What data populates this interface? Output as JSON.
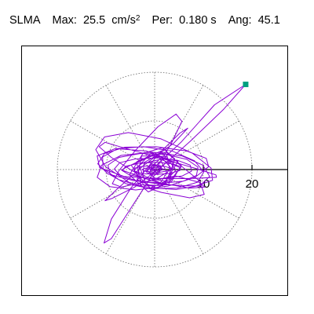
{
  "header": {
    "station": "SLMA",
    "max_label": "Max:",
    "max_value": "25.5",
    "max_unit_base": "cm/s",
    "max_unit_sup": "2",
    "per_label": "Per:",
    "per_value": "0.180 s",
    "ang_label": "Ang:",
    "ang_value": "45.1"
  },
  "chart_data": {
    "type": "polar-trajectory",
    "units": "cm/s^2",
    "rings": [
      10,
      20
    ],
    "tick_labels": [
      "10",
      "20"
    ],
    "grid": "dotted radial spokes every 30 deg",
    "end_marker": {
      "x": 18.7,
      "y": 17.5
    },
    "trajectory": [
      [
        0,
        0
      ],
      [
        -1,
        0.5
      ],
      [
        0.5,
        -0.8
      ],
      [
        1.4,
        0.4
      ],
      [
        -0.6,
        1.2
      ],
      [
        -1.8,
        -0.4
      ],
      [
        0.3,
        -1.9
      ],
      [
        2.5,
        -0.6
      ],
      [
        1.2,
        2.1
      ],
      [
        -2.2,
        1.3
      ],
      [
        -2.4,
        -1.7
      ],
      [
        1.1,
        -2.8
      ],
      [
        3.3,
        0.4
      ],
      [
        0.8,
        3.1
      ],
      [
        -3.2,
        0.9
      ],
      [
        -1.9,
        -2.6
      ],
      [
        2.2,
        -2.9
      ],
      [
        3.9,
        1.3
      ],
      [
        -0.6,
        3.5
      ],
      [
        -4.3,
        -0.3
      ],
      [
        -0.9,
        -3.8
      ],
      [
        3.4,
        -1.9
      ],
      [
        2.6,
        2.7
      ],
      [
        -2.7,
        2.8
      ],
      [
        -3.6,
        -2.1
      ],
      [
        0.6,
        -3.9
      ],
      [
        4.4,
        -0.1
      ],
      [
        1.3,
        3.8
      ],
      [
        -3.7,
        1.6
      ],
      [
        -2.8,
        -3.1
      ],
      [
        1.7,
        -3.3
      ],
      [
        4.8,
        1.7
      ],
      [
        -0.3,
        2.9
      ],
      [
        -4.8,
        0.9
      ],
      [
        -2.1,
        -3.4
      ],
      [
        2.9,
        -3.1
      ],
      [
        4.1,
        2.2
      ],
      [
        1.6,
        4.5
      ],
      [
        -2.4,
        3.3
      ],
      [
        -5.2,
        -1.1
      ],
      [
        -1.3,
        -4.6
      ],
      [
        3.2,
        -2.4
      ],
      [
        5.5,
        0.8
      ],
      [
        2.4,
        3.6
      ],
      [
        -1.5,
        2.6
      ],
      [
        -6.1,
        0.3
      ],
      [
        -6.8,
        -0.1
      ],
      [
        -2.5,
        -1.6
      ],
      [
        3.4,
        -2.6
      ],
      [
        5.2,
        0.4
      ],
      [
        1.1,
        2.2
      ],
      [
        -1.5,
        -0.2
      ],
      [
        -0.3,
        -1.4
      ],
      [
        1.3,
        -0.1
      ],
      [
        0.1,
        1.1
      ],
      [
        -1.1,
        -0.7
      ],
      [
        0.8,
        -0.9
      ],
      [
        1.2,
        0.8
      ],
      [
        -0.5,
        0.9
      ],
      [
        -0.9,
        -0.3
      ],
      [
        5.4,
        5.6
      ],
      [
        12.3,
        13.3
      ],
      [
        18.7,
        17.5
      ],
      [
        14.2,
        12.4
      ],
      [
        7.3,
        5.8
      ],
      [
        1.7,
        0.8
      ],
      [
        -4.1,
        -3.6
      ],
      [
        -8.7,
        -5.9
      ],
      [
        -10.2,
        -6.4
      ],
      [
        -7.8,
        -4.1
      ],
      [
        -2.3,
        0.8
      ],
      [
        3.9,
        5.4
      ],
      [
        6.8,
        8.5
      ],
      [
        5.2,
        7.5
      ],
      [
        0.9,
        3.3
      ],
      [
        -4.8,
        -3.7
      ],
      [
        -8.9,
        -10.2
      ],
      [
        -10.4,
        -15.1
      ],
      [
        -8.9,
        -14.2
      ],
      [
        -5.2,
        -8.4
      ],
      [
        -0.6,
        -1.3
      ],
      [
        3.4,
        5.3
      ],
      [
        5.6,
        9.9
      ],
      [
        4.4,
        11.4
      ],
      [
        0.7,
        8.8
      ],
      [
        -3.8,
        4.1
      ],
      [
        -7.3,
        -0.2
      ],
      [
        -8.7,
        -2.9
      ],
      [
        -6.8,
        -3.6
      ],
      [
        -1.9,
        -2.5
      ],
      [
        4.3,
        -1.3
      ],
      [
        9.1,
        -2.6
      ],
      [
        10.3,
        -3.6
      ],
      [
        7.2,
        -3.8
      ],
      [
        1.4,
        -2.8
      ],
      [
        -4.5,
        -0.3
      ],
      [
        -8.9,
        2.5
      ],
      [
        -11.4,
        4.7
      ],
      [
        -10.2,
        5.6
      ],
      [
        -5.8,
        4.3
      ],
      [
        1.3,
        2.3
      ],
      [
        8.2,
        0.3
      ],
      [
        12.6,
        -1.1
      ],
      [
        12.7,
        -1.6
      ],
      [
        8.3,
        -1.8
      ],
      [
        1.1,
        -1.9
      ],
      [
        -6.3,
        -1.4
      ],
      [
        -11.3,
        0.4
      ],
      [
        -11.8,
        2.8
      ],
      [
        -8.1,
        4.3
      ],
      [
        -1.7,
        3.8
      ],
      [
        4.9,
        1.2
      ],
      [
        9.3,
        -2.4
      ],
      [
        10.2,
        -5.1
      ],
      [
        7.2,
        -5.8
      ],
      [
        1.4,
        -4.7
      ],
      [
        -5.3,
        -2.6
      ],
      [
        -10.1,
        0.6
      ],
      [
        -12.1,
        4.1
      ],
      [
        -10.3,
        6.7
      ],
      [
        -5.4,
        7.6
      ],
      [
        1.3,
        6.3
      ],
      [
        7.7,
        3.4
      ],
      [
        11.6,
        0.3
      ],
      [
        11.9,
        -2.2
      ],
      [
        8.4,
        -3.4
      ],
      [
        2.1,
        -3.1
      ],
      [
        -4.6,
        -2.2
      ],
      [
        -9.6,
        -0.9
      ],
      [
        -11.7,
        1.2
      ],
      [
        -10.3,
        3.3
      ],
      [
        -6.1,
        4.6
      ],
      [
        0.3,
        4.7
      ],
      [
        6.6,
        3.8
      ],
      [
        10.6,
        2.3
      ],
      [
        11.1,
        0.6
      ],
      [
        8.3,
        -1.6
      ],
      [
        2.7,
        -3.4
      ],
      [
        -3.9,
        -4.2
      ],
      [
        -9.2,
        -3.5
      ],
      [
        -11.8,
        -1.6
      ],
      [
        -10.9,
        0.9
      ],
      [
        -6.9,
        2.9
      ],
      [
        -0.7,
        3.6
      ],
      [
        5.6,
        2.8
      ],
      [
        9.9,
        0.9
      ],
      [
        11.3,
        -1.4
      ],
      [
        9.3,
        -3.3
      ],
      [
        4.4,
        -4.1
      ],
      [
        -1.8,
        -3.7
      ],
      [
        -7.3,
        -2.1
      ],
      [
        -10.6,
        0.2
      ],
      [
        -10.7,
        2.6
      ],
      [
        -7.6,
        4.3
      ],
      [
        -2.3,
        4.7
      ],
      [
        3.6,
        3.8
      ],
      [
        8.2,
        1.8
      ],
      [
        10.1,
        -0.5
      ],
      [
        8.8,
        -2.6
      ],
      [
        4.7,
        -3.8
      ],
      [
        -0.8,
        -3.9
      ],
      [
        -5.9,
        -2.9
      ],
      [
        -9.1,
        -1.1
      ],
      [
        -9.6,
        0.9
      ],
      [
        -7.3,
        2.5
      ],
      [
        -2.9,
        3.3
      ],
      [
        2.3,
        3.1
      ],
      [
        6.6,
        2.1
      ],
      [
        8.9,
        0.5
      ],
      [
        8.6,
        -1.2
      ],
      [
        5.8,
        -2.4
      ],
      [
        1.4,
        -2.8
      ],
      [
        -3.3,
        -2.4
      ],
      [
        -6.9,
        -1.3
      ],
      [
        -8.3,
        0.1
      ],
      [
        -7.2,
        1.4
      ],
      [
        -3.9,
        2.2
      ],
      [
        0.6,
        2.4
      ],
      [
        4.7,
        1.9
      ],
      [
        7.3,
        0.9
      ],
      [
        7.6,
        -0.3
      ],
      [
        5.7,
        -1.3
      ],
      [
        2.1,
        -1.8
      ],
      [
        -1.9,
        -1.7
      ],
      [
        -5.2,
        -1.1
      ],
      [
        -6.7,
        -0.2
      ],
      [
        -5.9,
        0.7
      ],
      [
        -3.2,
        1.3
      ],
      [
        0.4,
        1.5
      ],
      [
        3.6,
        1.2
      ],
      [
        5.4,
        0.6
      ],
      [
        5.2,
        -0.2
      ],
      [
        3.1,
        -0.8
      ],
      [
        0.2,
        -1.0
      ],
      [
        -2.6,
        -0.8
      ],
      [
        -4.2,
        -0.3
      ],
      [
        -4.1,
        0.3
      ],
      [
        -2.4,
        0.7
      ],
      [
        0.1,
        0.8
      ],
      [
        2.3,
        0.6
      ],
      [
        3.4,
        0.2
      ],
      [
        3.0,
        -0.2
      ],
      [
        1.4,
        -0.5
      ],
      [
        -0.6,
        -0.5
      ],
      [
        -2.1,
        -0.3
      ],
      [
        -2.6,
        0.0
      ],
      [
        -1.8,
        0.3
      ],
      [
        -0.3,
        0.4
      ],
      [
        1.1,
        0.3
      ],
      [
        1.8,
        0.1
      ],
      [
        1.5,
        -0.1
      ],
      [
        0.5,
        -0.2
      ],
      [
        -0.5,
        -0.2
      ],
      [
        -1.0,
        0.0
      ],
      [
        -0.8,
        0.1
      ],
      [
        -0.2,
        0.1
      ],
      [
        0.3,
        0.0
      ],
      [
        0.2,
        0.0
      ],
      [
        0,
        0
      ]
    ]
  }
}
